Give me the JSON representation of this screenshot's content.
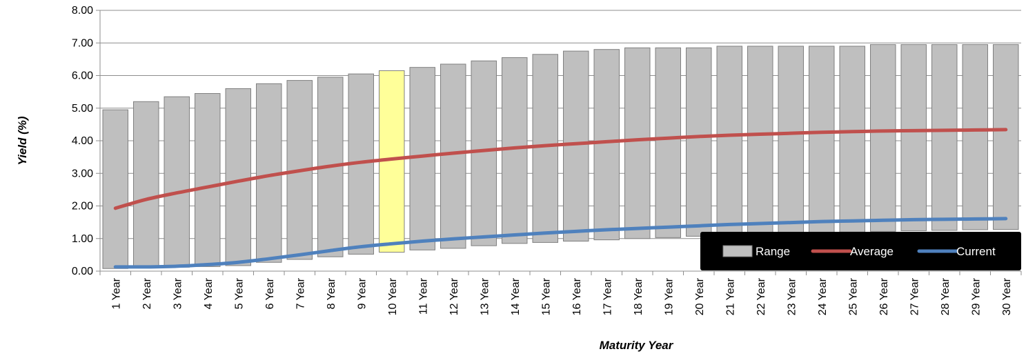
{
  "chart_data": {
    "type": "bar",
    "title": "",
    "xlabel": "Maturity Year",
    "ylabel": "Yield (%)",
    "ylim": [
      0,
      8
    ],
    "yticks": [
      "0.00",
      "1.00",
      "2.00",
      "3.00",
      "4.00",
      "5.00",
      "6.00",
      "7.00",
      "8.00"
    ],
    "grid": true,
    "legend_position": "bottom-right",
    "categories": [
      "1 Year",
      "2 Year",
      "3 Year",
      "4 Year",
      "5 Year",
      "6 Year",
      "7 Year",
      "8 Year",
      "9 Year",
      "10 Year",
      "11 Year",
      "12 Year",
      "13 Year",
      "14 Year",
      "15 Year",
      "16 Year",
      "17 Year",
      "18 Year",
      "19 Year",
      "20 Year",
      "21 Year",
      "22 Year",
      "23 Year",
      "24 Year",
      "25 Year",
      "26 Year",
      "27 Year",
      "28 Year",
      "29 Year",
      "30 Year"
    ],
    "highlight_category": "10 Year",
    "series": [
      {
        "name": "Range",
        "kind": "floating-bar",
        "color": "#bfbfbf",
        "highlight_color": "#ffff99",
        "low": [
          0.08,
          0.1,
          0.12,
          0.14,
          0.17,
          0.27,
          0.36,
          0.44,
          0.52,
          0.58,
          0.65,
          0.7,
          0.78,
          0.85,
          0.88,
          0.92,
          0.96,
          1.0,
          1.03,
          1.07,
          1.1,
          1.13,
          1.15,
          1.18,
          1.2,
          1.22,
          1.24,
          1.25,
          1.27,
          1.28
        ],
        "high": [
          4.95,
          5.2,
          5.35,
          5.45,
          5.6,
          5.75,
          5.85,
          5.95,
          6.05,
          6.15,
          6.25,
          6.35,
          6.45,
          6.55,
          6.65,
          6.75,
          6.8,
          6.85,
          6.85,
          6.85,
          6.9,
          6.9,
          6.9,
          6.9,
          6.9,
          6.95,
          6.95,
          6.95,
          6.95,
          6.95
        ]
      },
      {
        "name": "Average",
        "kind": "line",
        "color": "#c0504d",
        "values": [
          1.93,
          2.2,
          2.4,
          2.58,
          2.76,
          2.93,
          3.08,
          3.22,
          3.34,
          3.44,
          3.53,
          3.62,
          3.7,
          3.78,
          3.85,
          3.91,
          3.97,
          4.03,
          4.08,
          4.13,
          4.17,
          4.2,
          4.23,
          4.26,
          4.28,
          4.3,
          4.31,
          4.32,
          4.33,
          4.34
        ]
      },
      {
        "name": "Current",
        "kind": "line",
        "color": "#4f81bd",
        "values": [
          0.13,
          0.13,
          0.15,
          0.2,
          0.27,
          0.38,
          0.5,
          0.63,
          0.75,
          0.84,
          0.92,
          0.99,
          1.05,
          1.11,
          1.17,
          1.22,
          1.27,
          1.31,
          1.35,
          1.39,
          1.43,
          1.46,
          1.49,
          1.52,
          1.54,
          1.56,
          1.58,
          1.59,
          1.6,
          1.61
        ]
      }
    ]
  }
}
